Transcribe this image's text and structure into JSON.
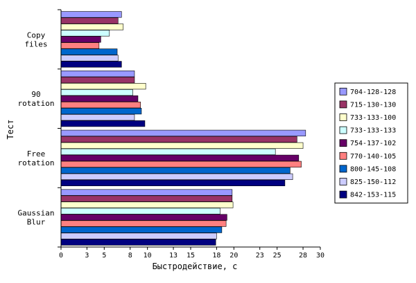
{
  "chart_data": {
    "type": "bar",
    "orientation": "horizontal",
    "xlabel": "Быстродействие, с",
    "ylabel": "Тест",
    "xlim": [
      0,
      30
    ],
    "x_ticks": [
      0,
      3,
      5,
      8,
      10,
      13,
      15,
      18,
      20,
      23,
      25,
      28,
      30
    ],
    "grid": false,
    "legend_position": "right",
    "categories": [
      [
        "Copy",
        "files"
      ],
      [
        "90",
        "rotation"
      ],
      [
        "Free",
        "rotation"
      ],
      [
        "Gaussian",
        "Blur"
      ]
    ],
    "series": [
      {
        "name": "704-128-128",
        "color": "#9999ff",
        "values": [
          7.0,
          8.5,
          28.3,
          19.8
        ]
      },
      {
        "name": "715-130-130",
        "color": "#993366",
        "values": [
          6.6,
          8.5,
          27.3,
          19.8
        ]
      },
      {
        "name": "733-133-100",
        "color": "#ffffcc",
        "values": [
          7.2,
          9.8,
          28.0,
          19.9
        ]
      },
      {
        "name": "733-133-133",
        "color": "#ccffff",
        "values": [
          5.6,
          8.3,
          24.8,
          18.4
        ]
      },
      {
        "name": "754-137-102",
        "color": "#660066",
        "values": [
          4.6,
          8.9,
          27.5,
          19.2
        ]
      },
      {
        "name": "770-140-105",
        "color": "#ff8080",
        "values": [
          4.4,
          9.2,
          27.8,
          19.1
        ]
      },
      {
        "name": "800-145-108",
        "color": "#0066cc",
        "values": [
          6.5,
          9.3,
          26.5,
          18.6
        ]
      },
      {
        "name": "825-150-112",
        "color": "#ccccff",
        "values": [
          6.6,
          8.5,
          26.8,
          18.0
        ]
      },
      {
        "name": "842-153-115",
        "color": "#000080",
        "values": [
          7.0,
          9.7,
          25.9,
          17.9
        ]
      }
    ]
  }
}
